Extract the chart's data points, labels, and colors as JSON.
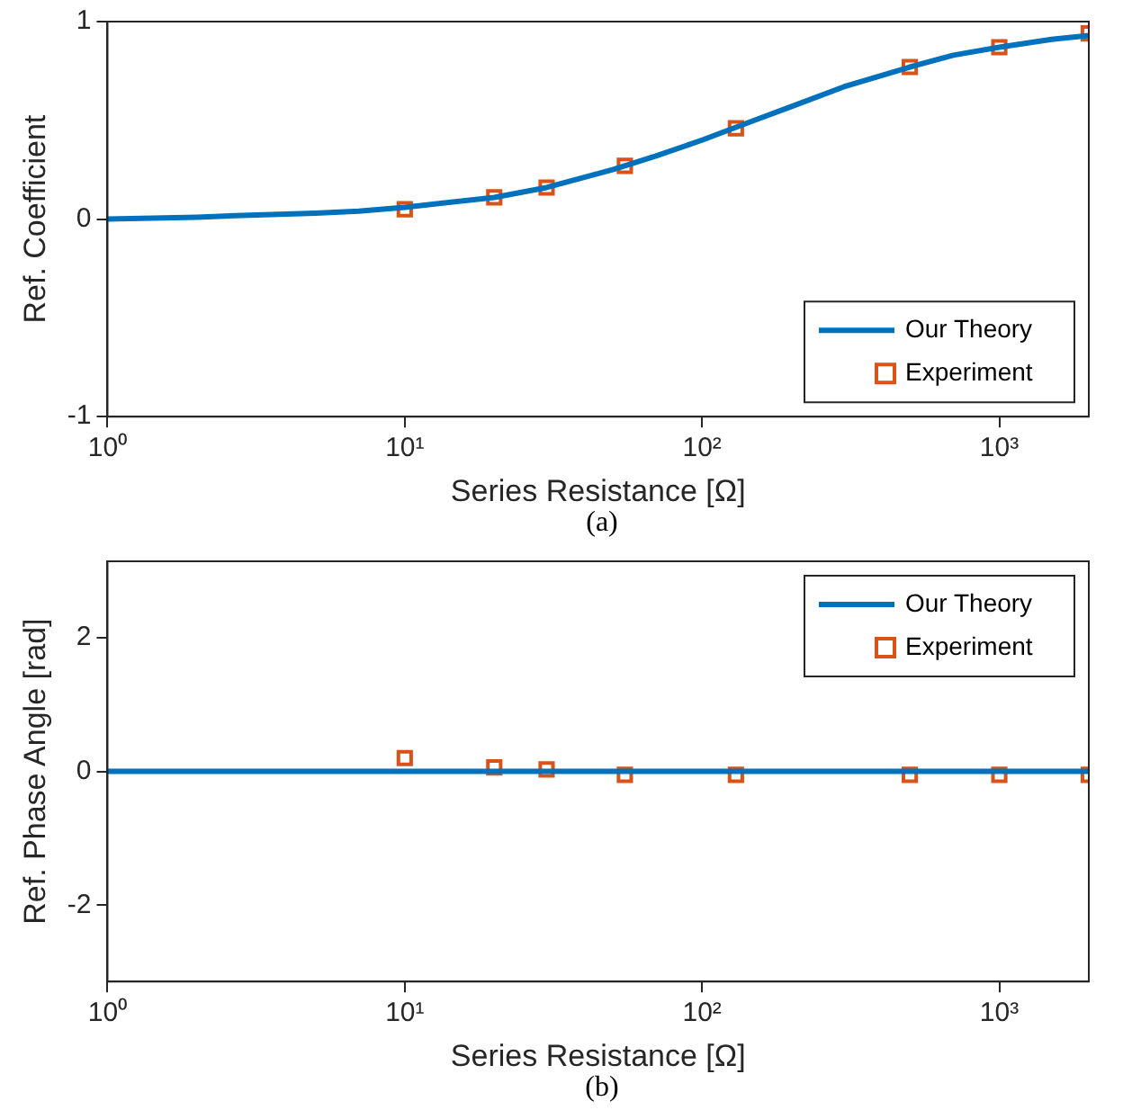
{
  "chart_data": [
    {
      "type": "line",
      "xlabel": "Series Resistance [Ω]",
      "ylabel": "Ref. Coefficient",
      "annotations": [
        "(a)"
      ],
      "log": "x",
      "xlim": [
        1,
        2000
      ],
      "xticks": [
        {
          "value": 1,
          "label": "10⁰"
        },
        {
          "value": 10,
          "label": "10¹"
        },
        {
          "value": 100,
          "label": "10²"
        },
        {
          "value": 1000,
          "label": "10³"
        }
      ],
      "ylim": [
        -1,
        1
      ],
      "yticks": [
        -1,
        0,
        1
      ],
      "grid": false,
      "legend": "bottom right",
      "series": [
        {
          "name": "Our Theory",
          "color": "#0072bd",
          "line_style": "solid",
          "marker": "none",
          "x": [
            1,
            2,
            3,
            5,
            7,
            10,
            20,
            30,
            50,
            70,
            100,
            150,
            200,
            300,
            500,
            700,
            1000,
            1500,
            2000
          ],
          "values": [
            0.0,
            0.01,
            0.02,
            0.03,
            0.04,
            0.06,
            0.11,
            0.16,
            0.25,
            0.32,
            0.4,
            0.5,
            0.57,
            0.67,
            0.77,
            0.83,
            0.87,
            0.91,
            0.93
          ]
        },
        {
          "name": "Experiment",
          "type": "scatter",
          "color": "#d95319",
          "marker": "square",
          "x": [
            10,
            20,
            30,
            55,
            130,
            500,
            1000,
            2000
          ],
          "values": [
            0.05,
            0.11,
            0.16,
            0.27,
            0.46,
            0.77,
            0.87,
            0.94
          ]
        }
      ]
    },
    {
      "type": "line",
      "xlabel": "Series Resistance [Ω]",
      "ylabel": "Ref. Phase Angle [rad]",
      "annotations": [
        "(b)"
      ],
      "log": "x",
      "xlim": [
        1,
        2000
      ],
      "xticks": [
        {
          "value": 1,
          "label": "10⁰"
        },
        {
          "value": 10,
          "label": "10¹"
        },
        {
          "value": 100,
          "label": "10²"
        },
        {
          "value": 1000,
          "label": "10³"
        }
      ],
      "ylim": [
        -3.14,
        3.14
      ],
      "yticks": [
        -2,
        0,
        2
      ],
      "grid": false,
      "legend": "top right",
      "series": [
        {
          "name": "Our Theory",
          "color": "#0072bd",
          "line_style": "solid",
          "marker": "none",
          "x": [
            1,
            2000
          ],
          "values": [
            0,
            0
          ]
        },
        {
          "name": "Experiment",
          "type": "scatter",
          "color": "#d95319",
          "marker": "square",
          "x": [
            10,
            20,
            30,
            55,
            130,
            500,
            1000,
            2000
          ],
          "values": [
            0.2,
            0.06,
            0.03,
            -0.05,
            -0.05,
            -0.05,
            -0.05,
            -0.05
          ]
        }
      ]
    }
  ]
}
